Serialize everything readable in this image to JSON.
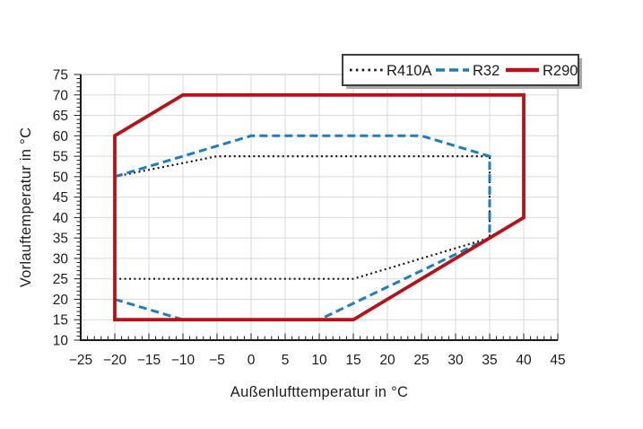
{
  "figure": {
    "background": "#ffffff",
    "grid_color": "#d9d9d9",
    "border_color": "#c6c6c6",
    "spine_color": "#1c1c1c",
    "text_color": "#1c1c1c",
    "legend_border_color": "#3d3d3d",
    "legend_shadow_color": "#a8a8a8"
  },
  "chart_data": {
    "type": "line",
    "title": "",
    "xlabel": "Außenlufttemperatur in °C",
    "ylabel": "Vorlauftemperatur in °C",
    "xlim": [
      -25,
      45
    ],
    "ylim": [
      10,
      75
    ],
    "xticks": [
      -25,
      -20,
      -15,
      -10,
      -5,
      0,
      5,
      10,
      15,
      20,
      25,
      30,
      35,
      40,
      45
    ],
    "yticks": [
      10,
      15,
      20,
      25,
      30,
      35,
      40,
      45,
      50,
      55,
      60,
      65,
      70,
      75
    ],
    "minor_tick_step": 1,
    "grid": true,
    "legend_position": "top-right",
    "legend_entries": [
      "R410A",
      "R32",
      "R290"
    ],
    "series": [
      {
        "name": "R410A",
        "color": "#1a1a1a",
        "line_style": "dotted",
        "closed": true,
        "points": [
          [
            -20,
            50
          ],
          [
            -5,
            55
          ],
          [
            35,
            55
          ],
          [
            35,
            35
          ],
          [
            15,
            25
          ],
          [
            -20,
            25
          ]
        ]
      },
      {
        "name": "R32",
        "color": "#1b7ec2",
        "line_style": "dashed",
        "closed": true,
        "points": [
          [
            -20,
            50
          ],
          [
            0,
            60
          ],
          [
            25,
            60
          ],
          [
            35,
            55
          ],
          [
            35,
            35
          ],
          [
            10,
            15
          ],
          [
            -10,
            15
          ],
          [
            -20,
            20
          ]
        ]
      },
      {
        "name": "R290",
        "color": "#b61218",
        "line_style": "solid",
        "closed": true,
        "points": [
          [
            -20,
            60
          ],
          [
            -10,
            70
          ],
          [
            40,
            70
          ],
          [
            40,
            40
          ],
          [
            15,
            15
          ],
          [
            -20,
            15
          ]
        ]
      }
    ]
  }
}
